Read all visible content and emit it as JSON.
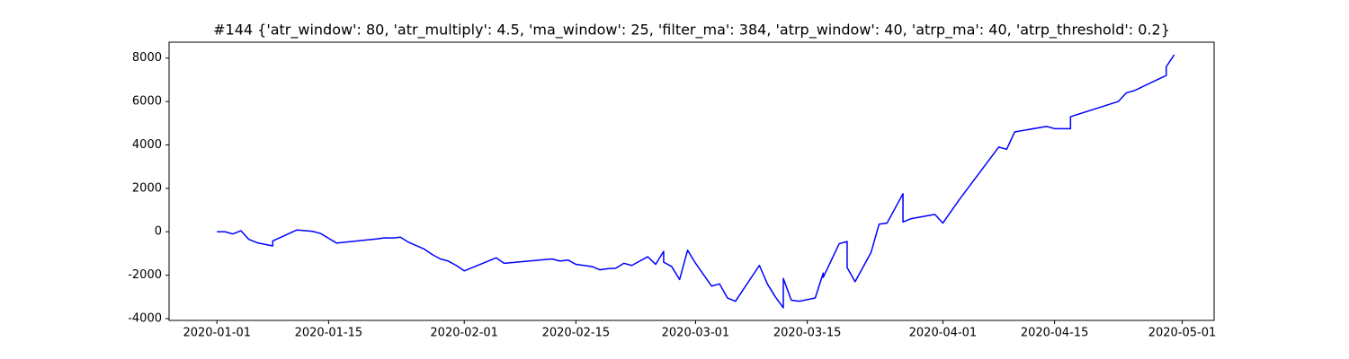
{
  "chart_data": {
    "type": "line",
    "title": "#144 {'atr_window': 80, 'atr_multiply': 4.5, 'ma_window': 25, 'filter_ma': 384, 'atrp_window': 40, 'atrp_ma': 40, 'atrp_threshold': 0.2}",
    "color": "#0000ff",
    "x": [
      "2020-01-01",
      "2020-01-02",
      "2020-01-03",
      "2020-01-04",
      "2020-01-05",
      "2020-01-06",
      "2020-01-07",
      "2020-01-08",
      "2020-01-08",
      "2020-01-11",
      "2020-01-13",
      "2020-01-14",
      "2020-01-15",
      "2020-01-16",
      "2020-01-21",
      "2020-01-22",
      "2020-01-23",
      "2020-01-24",
      "2020-01-25",
      "2020-01-27",
      "2020-01-28",
      "2020-01-29",
      "2020-01-30",
      "2020-01-31",
      "2020-02-01",
      "2020-02-05",
      "2020-02-06",
      "2020-02-12",
      "2020-02-13",
      "2020-02-14",
      "2020-02-15",
      "2020-02-17",
      "2020-02-18",
      "2020-02-19",
      "2020-02-20",
      "2020-02-21",
      "2020-02-22",
      "2020-02-24",
      "2020-02-25",
      "2020-02-26",
      "2020-02-26",
      "2020-02-27",
      "2020-02-28",
      "2020-02-29",
      "2020-03-01",
      "2020-03-03",
      "2020-03-04",
      "2020-03-05",
      "2020-03-06",
      "2020-03-09",
      "2020-03-10",
      "2020-03-11",
      "2020-03-12",
      "2020-03-12",
      "2020-03-13",
      "2020-03-14",
      "2020-03-16",
      "2020-03-17",
      "2020-03-17",
      "2020-03-19",
      "2020-03-20",
      "2020-03-20",
      "2020-03-21",
      "2020-03-23",
      "2020-03-24",
      "2020-03-25",
      "2020-03-27",
      "2020-03-27",
      "2020-03-28",
      "2020-03-31",
      "2020-04-01",
      "2020-04-03",
      "2020-04-08",
      "2020-04-09",
      "2020-04-10",
      "2020-04-14",
      "2020-04-15",
      "2020-04-17",
      "2020-04-17",
      "2020-04-23",
      "2020-04-24",
      "2020-04-25",
      "2020-04-29",
      "2020-04-29",
      "2020-04-30"
    ],
    "values": [
      0,
      0,
      -100,
      50,
      -350,
      -500,
      -580,
      -650,
      -420,
      80,
      20,
      -80,
      -300,
      -520,
      -330,
      -280,
      -290,
      -250,
      -480,
      -800,
      -1050,
      -1250,
      -1350,
      -1550,
      -1800,
      -1200,
      -1450,
      -1250,
      -1350,
      -1300,
      -1500,
      -1600,
      -1750,
      -1700,
      -1680,
      -1450,
      -1550,
      -1150,
      -1500,
      -900,
      -1400,
      -1600,
      -2200,
      -850,
      -1450,
      -2500,
      -2400,
      -3050,
      -3200,
      -1550,
      -2400,
      -3000,
      -3500,
      -2150,
      -3150,
      -3200,
      -3050,
      -1900,
      -2100,
      -550,
      -450,
      -1650,
      -2300,
      -950,
      350,
      400,
      1750,
      450,
      600,
      800,
      400,
      1450,
      3900,
      3800,
      4600,
      4850,
      4750,
      4750,
      5300,
      6000,
      6400,
      6500,
      7200,
      7600,
      8150
    ],
    "xlim": [
      "2019-12-26",
      "2020-05-05"
    ],
    "xticks": [
      "2020-01-01",
      "2020-01-15",
      "2020-02-01",
      "2020-02-15",
      "2020-03-01",
      "2020-03-15",
      "2020-04-01",
      "2020-04-15",
      "2020-05-01"
    ],
    "ylim": [
      -4082,
      8732
    ],
    "yticks": [
      -4000,
      -2000,
      0,
      2000,
      4000,
      6000,
      8000
    ]
  }
}
